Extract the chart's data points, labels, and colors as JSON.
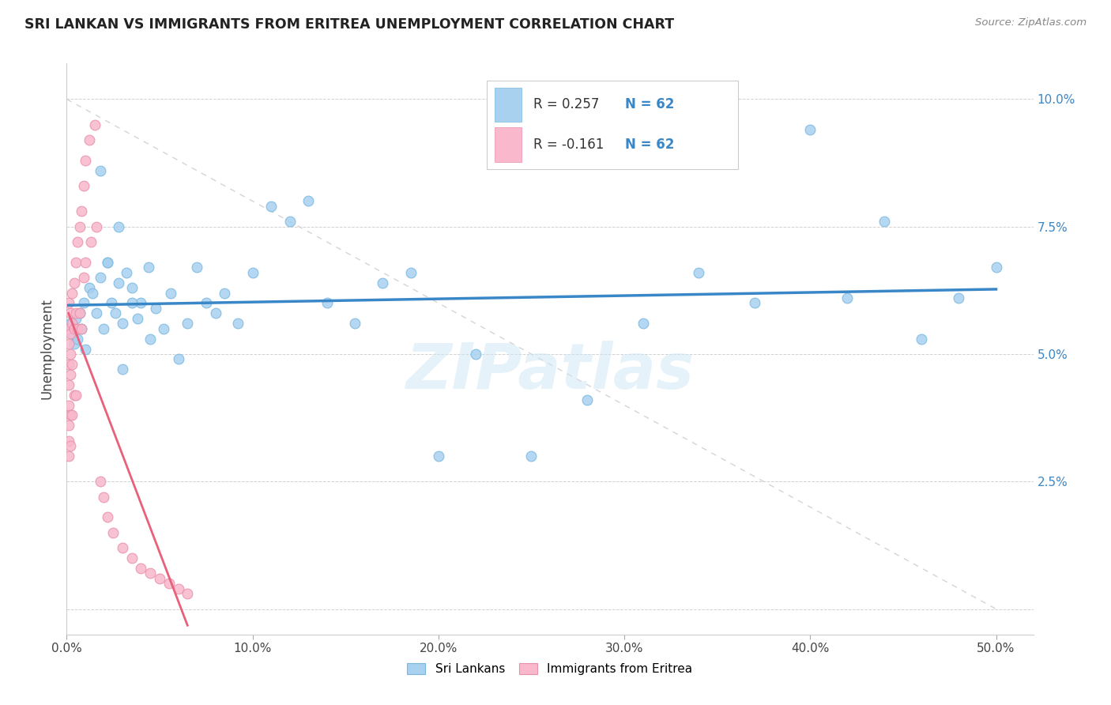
{
  "title": "SRI LANKAN VS IMMIGRANTS FROM ERITREA UNEMPLOYMENT CORRELATION CHART",
  "source": "Source: ZipAtlas.com",
  "ylabel": "Unemployment",
  "xlim": [
    0.0,
    0.52
  ],
  "ylim": [
    -0.005,
    0.107
  ],
  "blue_color": "#a8d0ef",
  "pink_color": "#f9b8cc",
  "blue_line_color": "#3a87c8",
  "pink_line_color": "#e8607a",
  "diag_color": "#d0d0d0",
  "watermark": "ZIPatlas",
  "legend_label_blue": "Sri Lankans",
  "legend_label_pink": "Immigrants from Eritrea",
  "sri_lankan_x": [
    0.001,
    0.002,
    0.003,
    0.004,
    0.005,
    0.006,
    0.007,
    0.008,
    0.009,
    0.01,
    0.012,
    0.014,
    0.016,
    0.018,
    0.02,
    0.022,
    0.024,
    0.026,
    0.028,
    0.03,
    0.032,
    0.035,
    0.038,
    0.04,
    0.044,
    0.048,
    0.052,
    0.056,
    0.06,
    0.065,
    0.07,
    0.075,
    0.08,
    0.085,
    0.092,
    0.1,
    0.11,
    0.12,
    0.13,
    0.14,
    0.155,
    0.17,
    0.185,
    0.2,
    0.22,
    0.25,
    0.28,
    0.31,
    0.34,
    0.37,
    0.4,
    0.42,
    0.44,
    0.46,
    0.48,
    0.5,
    0.028,
    0.018,
    0.022,
    0.03,
    0.035,
    0.045
  ],
  "sri_lankan_y": [
    0.055,
    0.056,
    0.054,
    0.052,
    0.057,
    0.053,
    0.058,
    0.055,
    0.06,
    0.051,
    0.063,
    0.062,
    0.058,
    0.065,
    0.055,
    0.068,
    0.06,
    0.058,
    0.064,
    0.047,
    0.066,
    0.063,
    0.057,
    0.06,
    0.067,
    0.059,
    0.055,
    0.062,
    0.049,
    0.056,
    0.067,
    0.06,
    0.058,
    0.062,
    0.056,
    0.066,
    0.079,
    0.076,
    0.08,
    0.06,
    0.056,
    0.064,
    0.066,
    0.03,
    0.05,
    0.03,
    0.041,
    0.056,
    0.066,
    0.06,
    0.094,
    0.061,
    0.076,
    0.053,
    0.061,
    0.067,
    0.075,
    0.086,
    0.068,
    0.056,
    0.06,
    0.053
  ],
  "eritrea_x": [
    0.001,
    0.001,
    0.001,
    0.001,
    0.001,
    0.001,
    0.001,
    0.001,
    0.001,
    0.002,
    0.002,
    0.002,
    0.002,
    0.002,
    0.002,
    0.003,
    0.003,
    0.003,
    0.003,
    0.004,
    0.004,
    0.004,
    0.005,
    0.005,
    0.005,
    0.006,
    0.006,
    0.007,
    0.007,
    0.008,
    0.008,
    0.009,
    0.009,
    0.01,
    0.01,
    0.012,
    0.013,
    0.015,
    0.016,
    0.018,
    0.02,
    0.022,
    0.025,
    0.03,
    0.035,
    0.04,
    0.045,
    0.05,
    0.055,
    0.06,
    0.065
  ],
  "eritrea_y": [
    0.055,
    0.052,
    0.048,
    0.044,
    0.04,
    0.036,
    0.033,
    0.03,
    0.06,
    0.058,
    0.054,
    0.05,
    0.046,
    0.038,
    0.032,
    0.062,
    0.056,
    0.048,
    0.038,
    0.064,
    0.055,
    0.042,
    0.068,
    0.058,
    0.042,
    0.072,
    0.055,
    0.075,
    0.058,
    0.078,
    0.055,
    0.083,
    0.065,
    0.088,
    0.068,
    0.092,
    0.072,
    0.095,
    0.075,
    0.025,
    0.022,
    0.018,
    0.015,
    0.012,
    0.01,
    0.008,
    0.007,
    0.006,
    0.005,
    0.004,
    0.003
  ]
}
